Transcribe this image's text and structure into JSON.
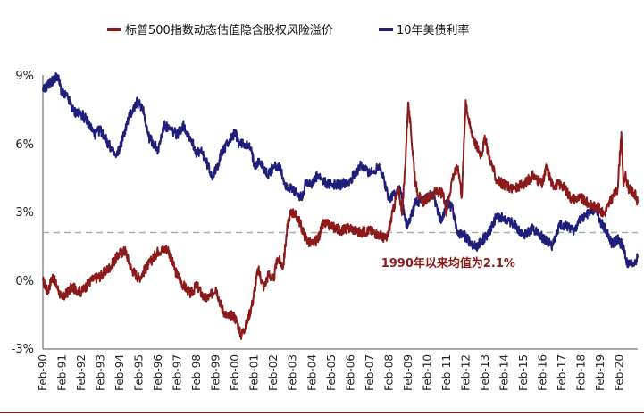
{
  "chart_data": {
    "type": "line",
    "title": "",
    "xlabel": "",
    "ylabel": "",
    "ylim": [
      -3,
      9
    ],
    "y_ticks": [
      -3,
      0,
      3,
      6,
      9
    ],
    "y_tick_labels": [
      "-3%",
      "0%",
      "3%",
      "6%",
      "9%"
    ],
    "x_tick_labels": [
      "Feb-90",
      "Feb-91",
      "Feb-92",
      "Feb-93",
      "Feb-94",
      "Feb-95",
      "Feb-96",
      "Feb-97",
      "Feb-98",
      "Feb-99",
      "Feb-00",
      "Feb-01",
      "Feb-02",
      "Feb-03",
      "Feb-04",
      "Feb-05",
      "Feb-06",
      "Feb-07",
      "Feb-08",
      "Feb-09",
      "Feb-10",
      "Feb-11",
      "Feb-12",
      "Feb-13",
      "Feb-14",
      "Feb-15",
      "Feb-16",
      "Feb-17",
      "Feb-18",
      "Feb-19",
      "Feb-20"
    ],
    "x_range": [
      1990.0,
      2020.95
    ],
    "legend_position": "top",
    "series": [
      {
        "name": "标普500指数动态估值隐含股权风险溢价",
        "color": "#8b1a1a",
        "x": [
          1990.0,
          1990.25,
          1990.5,
          1990.75,
          1991.0,
          1991.5,
          1992.0,
          1992.5,
          1993.0,
          1993.5,
          1994.0,
          1994.3,
          1994.6,
          1995.0,
          1995.5,
          1996.0,
          1996.5,
          1996.9,
          1997.3,
          1997.7,
          1998.0,
          1998.4,
          1998.7,
          1999.0,
          1999.3,
          1999.6,
          1999.9,
          2000.1,
          2000.3,
          2000.6,
          2000.9,
          2001.2,
          2001.5,
          2001.75,
          2002.0,
          2002.2,
          2002.5,
          2002.7,
          2002.85,
          2003.0,
          2003.3,
          2003.6,
          2003.8,
          2004.0,
          2004.3,
          2004.6,
          2005.0,
          2005.5,
          2006.0,
          2006.5,
          2007.0,
          2007.5,
          2007.9,
          2008.2,
          2008.5,
          2008.7,
          2008.85,
          2009.0,
          2009.15,
          2009.4,
          2009.7,
          2010.0,
          2010.5,
          2010.8,
          2011.0,
          2011.3,
          2011.6,
          2011.8,
          2012.0,
          2012.2,
          2012.5,
          2012.8,
          2013.0,
          2013.3,
          2013.6,
          2014.0,
          2014.5,
          2015.0,
          2015.5,
          2016.0,
          2016.2,
          2016.5,
          2017.0,
          2017.5,
          2018.0,
          2018.5,
          2018.9,
          2019.2,
          2019.6,
          2019.9,
          2020.1,
          2020.2,
          2020.3,
          2020.5,
          2020.8,
          2020.95
        ],
        "values": [
          0.0,
          -0.5,
          0.2,
          -0.3,
          -0.8,
          -0.3,
          -0.5,
          0.0,
          0.2,
          0.6,
          1.2,
          1.3,
          0.5,
          0.1,
          0.7,
          1.3,
          1.4,
          0.4,
          -0.2,
          -0.6,
          -0.2,
          -0.8,
          -0.7,
          -0.3,
          -1.2,
          -1.6,
          -1.5,
          -1.8,
          -2.4,
          -1.9,
          -1.0,
          0.5,
          -0.3,
          0.3,
          0.0,
          1.0,
          0.6,
          2.2,
          2.9,
          3.0,
          2.7,
          2.0,
          1.7,
          1.6,
          1.8,
          2.5,
          2.4,
          2.2,
          2.3,
          2.1,
          2.2,
          2.0,
          1.8,
          3.0,
          4.0,
          3.0,
          5.0,
          7.8,
          6.5,
          4.2,
          3.4,
          3.6,
          3.9,
          3.8,
          3.0,
          4.5,
          5.0,
          3.7,
          7.9,
          6.8,
          6.0,
          5.5,
          6.2,
          5.2,
          4.4,
          4.2,
          4.0,
          4.2,
          4.6,
          4.2,
          5.0,
          4.2,
          4.2,
          3.6,
          3.6,
          3.3,
          3.2,
          2.9,
          3.6,
          4.0,
          6.5,
          4.2,
          4.6,
          4.0,
          3.8,
          3.4
        ]
      },
      {
        "name": "10年美债利率",
        "color": "#1f1f7a",
        "x": [
          1990.0,
          1990.3,
          1990.6,
          1990.75,
          1991.0,
          1991.3,
          1991.6,
          1992.0,
          1992.3,
          1992.7,
          1993.0,
          1993.4,
          1993.8,
          1994.0,
          1994.5,
          1994.9,
          1995.2,
          1995.5,
          1996.0,
          1996.3,
          1996.6,
          1997.0,
          1997.3,
          1997.7,
          1998.0,
          1998.3,
          1998.8,
          1999.0,
          1999.3,
          1999.6,
          2000.0,
          2000.2,
          2000.5,
          2000.8,
          2001.0,
          2001.3,
          2001.7,
          2002.0,
          2002.3,
          2002.6,
          2002.9,
          2003.2,
          2003.5,
          2003.7,
          2004.0,
          2004.3,
          2004.6,
          2005.0,
          2005.5,
          2006.0,
          2006.5,
          2006.9,
          2007.2,
          2007.5,
          2008.0,
          2008.3,
          2008.6,
          2008.85,
          2009.0,
          2009.4,
          2009.7,
          2010.0,
          2010.3,
          2010.7,
          2011.0,
          2011.3,
          2011.6,
          2011.9,
          2012.3,
          2012.6,
          2013.0,
          2013.3,
          2013.6,
          2014.0,
          2014.5,
          2015.0,
          2015.5,
          2016.0,
          2016.5,
          2016.9,
          2017.2,
          2017.6,
          2018.0,
          2018.4,
          2018.8,
          2019.0,
          2019.3,
          2019.6,
          2019.9,
          2020.2,
          2020.4,
          2020.7,
          2020.95
        ],
        "values": [
          8.3,
          8.6,
          8.8,
          9.0,
          8.2,
          8.0,
          7.4,
          7.3,
          7.0,
          6.4,
          6.6,
          6.0,
          5.4,
          5.8,
          7.2,
          7.8,
          7.6,
          6.3,
          5.7,
          6.8,
          6.6,
          6.4,
          6.8,
          6.2,
          5.6,
          5.6,
          4.6,
          4.8,
          5.6,
          6.0,
          6.5,
          6.0,
          6.0,
          5.8,
          5.1,
          5.2,
          4.6,
          5.0,
          5.0,
          4.2,
          4.0,
          3.8,
          3.6,
          4.4,
          4.2,
          4.6,
          4.3,
          4.2,
          4.2,
          4.4,
          5.0,
          4.8,
          4.7,
          5.1,
          3.6,
          3.8,
          4.0,
          2.6,
          2.4,
          3.5,
          3.4,
          3.6,
          3.8,
          2.6,
          3.4,
          3.2,
          2.0,
          2.0,
          1.6,
          1.5,
          1.9,
          2.2,
          2.8,
          2.7,
          2.5,
          2.0,
          2.3,
          1.9,
          1.5,
          2.4,
          2.4,
          2.2,
          2.7,
          3.0,
          3.2,
          2.6,
          2.2,
          1.6,
          1.8,
          1.5,
          0.7,
          0.7,
          1.0
        ]
      }
    ],
    "reference_line": {
      "value": 2.1,
      "style": "dashed",
      "color": "#aaaaaa"
    },
    "annotation": {
      "text": "1990年以来均值为2.1%",
      "x": 2007.6,
      "y": 0.6
    }
  }
}
